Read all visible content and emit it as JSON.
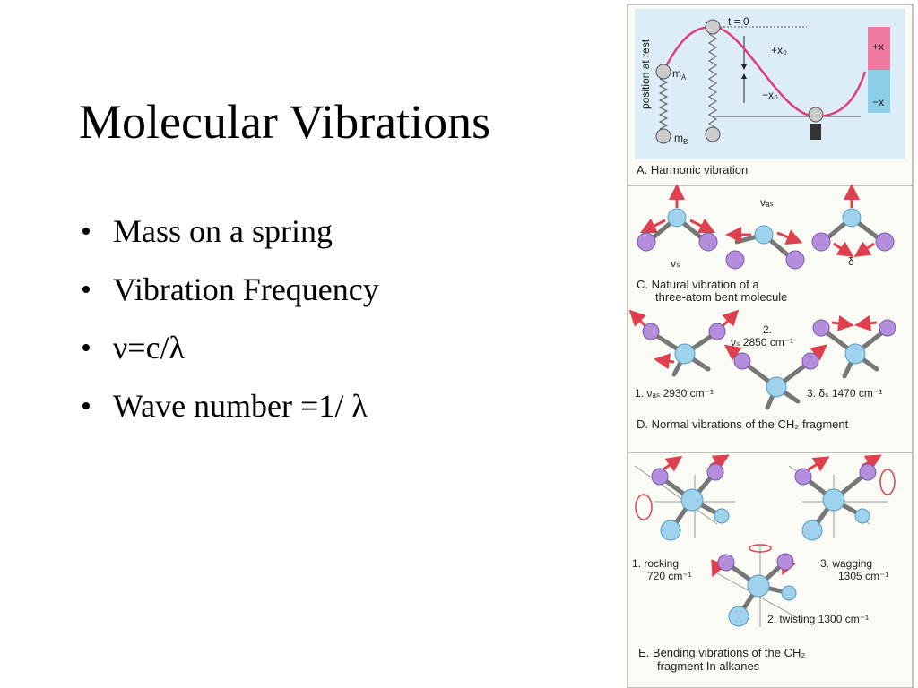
{
  "title": "Molecular Vibrations",
  "bullets": [
    "Mass on a spring",
    "Vibration Frequency",
    "ν=c/λ",
    "Wave number =1/ λ"
  ],
  "figure": {
    "panel_a": {
      "t0": "t = 0",
      "plus_x0": "+x₀",
      "minus_x0": "−x₀",
      "rest": "position at rest",
      "m_a": {
        "symbol": "m",
        "sub": "A"
      },
      "m_b": {
        "symbol": "m",
        "sub": "B"
      },
      "plus_x": "+x",
      "minus_x": "−x",
      "caption": "A. Harmonic vibration"
    },
    "panel_c": {
      "nu_as": "νₐₛ",
      "nu_s": "νₛ",
      "delta": "δ",
      "caption": [
        "C. Natural vibration of a",
        "three-atom bent molecule"
      ]
    },
    "panel_d": {
      "n2": "2.",
      "nu_s": "νₛ 2850 cm⁻¹",
      "nu_as": "1.  νₐₛ 2930 cm⁻¹",
      "delta_s": "3.  δₛ 1470 cm⁻¹",
      "caption": "D. Normal vibrations of the CH₂ fragment"
    },
    "panel_e": {
      "rocking": [
        "1.  rocking",
        "720 cm⁻¹"
      ],
      "wagging": [
        "3.  wagging",
        "1305 cm⁻¹"
      ],
      "twisting": "2.  twisting 1300 cm⁻¹",
      "caption": [
        "E. Bending vibrations of the CH₂",
        "fragment In alkanes"
      ]
    }
  }
}
